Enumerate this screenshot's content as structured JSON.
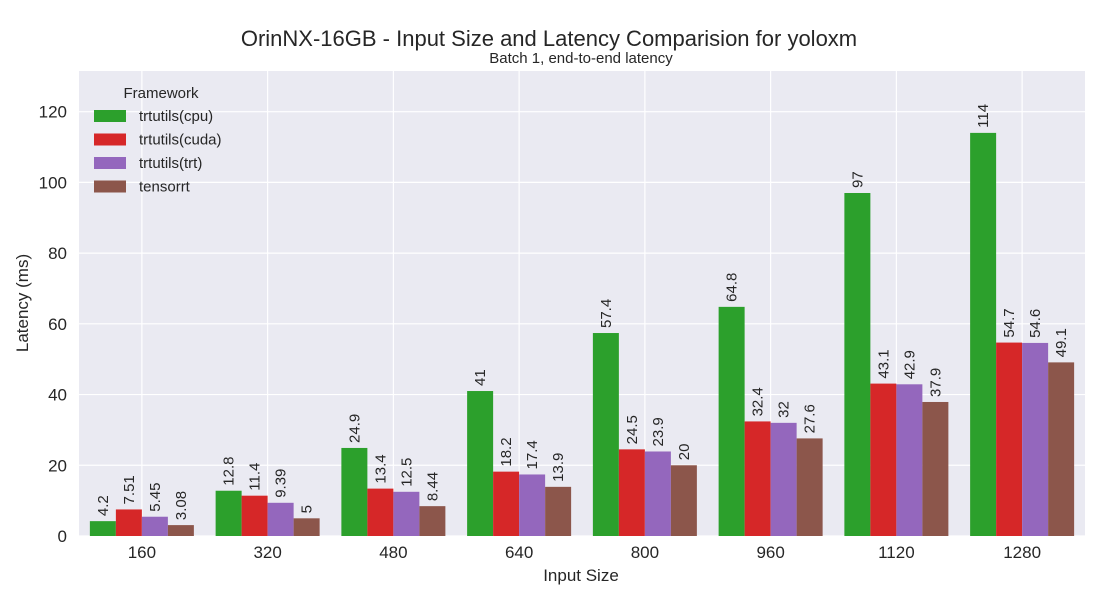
{
  "chart_data": {
    "type": "bar",
    "title": "OrinNX-16GB - Input Size and Latency Comparision for yoloxm",
    "subtitle": "Batch 1, end-to-end latency",
    "xlabel": "Input Size",
    "ylabel": "Latency (ms)",
    "ylim": [
      0,
      131.5
    ],
    "yticks": [
      0,
      20,
      40,
      60,
      80,
      100,
      120
    ],
    "grid": true,
    "legend_title": "Framework",
    "legend_position": "top-left",
    "categories": [
      "160",
      "320",
      "480",
      "640",
      "800",
      "960",
      "1120",
      "1280"
    ],
    "series": [
      {
        "name": "trtutils(cpu)",
        "color": "#2ca02c",
        "values": [
          4.2,
          12.8,
          24.9,
          41,
          57.4,
          64.8,
          97,
          114
        ],
        "labels": [
          "4.2",
          "12.8",
          "24.9",
          "41",
          "57.4",
          "64.8",
          "97",
          "114"
        ]
      },
      {
        "name": "trtutils(cuda)",
        "color": "#d62728",
        "values": [
          7.51,
          11.4,
          13.4,
          18.2,
          24.5,
          32.4,
          43.1,
          54.7
        ],
        "labels": [
          "7.51",
          "11.4",
          "13.4",
          "18.2",
          "24.5",
          "32.4",
          "43.1",
          "54.7"
        ]
      },
      {
        "name": "trtutils(trt)",
        "color": "#9467bd",
        "values": [
          5.45,
          9.39,
          12.5,
          17.4,
          23.9,
          32,
          42.9,
          54.6
        ],
        "labels": [
          "5.45",
          "9.39",
          "12.5",
          "17.4",
          "23.9",
          "32",
          "42.9",
          "54.6"
        ]
      },
      {
        "name": "tensorrt",
        "color": "#8c564b",
        "values": [
          3.08,
          5,
          8.44,
          13.9,
          20,
          27.6,
          37.9,
          49.1
        ],
        "labels": [
          "3.08",
          "5",
          "8.44",
          "13.9",
          "20",
          "27.6",
          "37.9",
          "49.1"
        ]
      }
    ]
  }
}
